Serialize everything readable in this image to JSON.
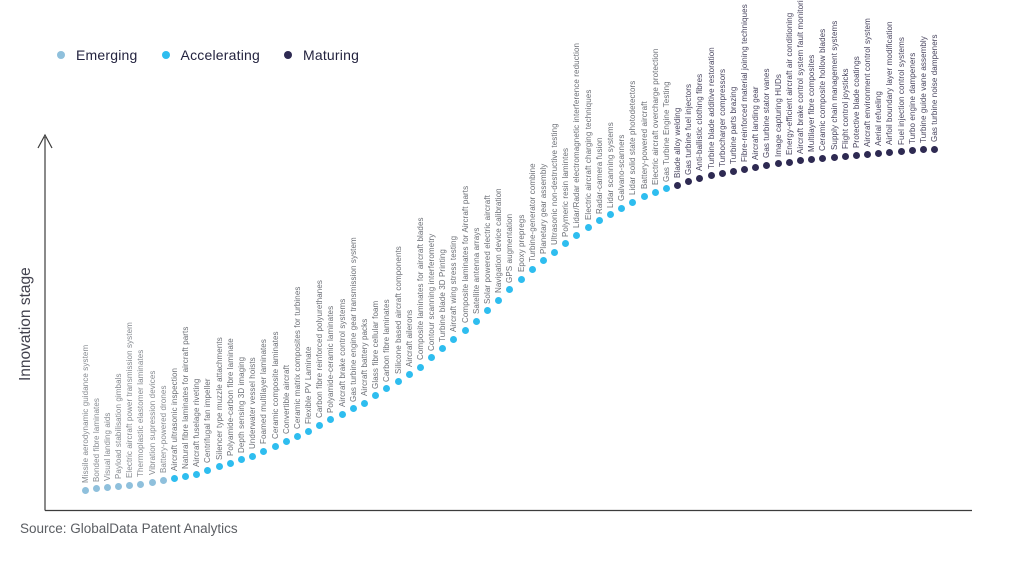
{
  "source": "Source: GlobalData Patent Analytics",
  "colors": {
    "emerging": "#8FC0DC",
    "accelerating": "#2EBDEF",
    "maturing": "#2E2A52",
    "axis": "#3c3c3c",
    "legend_text": "#23233f"
  },
  "chart_data": {
    "type": "scatter",
    "title": "",
    "xlabel": "",
    "ylabel": "Innovation stage",
    "legend_position": "top-left",
    "grid": false,
    "stages": [
      "Emerging",
      "Accelerating",
      "Maturing"
    ],
    "stage_colors": {
      "Emerging": "#8FC0DC",
      "Accelerating": "#2EBDEF",
      "Maturing": "#2E2A52"
    },
    "label_colors": {
      "Emerging": "#878b91",
      "Accelerating": "#6d7077",
      "Maturing": "#4a4660"
    },
    "items": [
      {
        "label": "Missile aerodynamic guidance system",
        "stage": "Emerging"
      },
      {
        "label": "Bonded fibre laminates",
        "stage": "Emerging"
      },
      {
        "label": "Visual landing aids",
        "stage": "Emerging"
      },
      {
        "label": "Payload stabilisation gimbals",
        "stage": "Emerging"
      },
      {
        "label": "Electric aircraft power transmission system",
        "stage": "Emerging"
      },
      {
        "label": "Thermoplastic elastomer laminates",
        "stage": "Emerging"
      },
      {
        "label": "Vibration supression devices",
        "stage": "Emerging"
      },
      {
        "label": "Battery-powered drones",
        "stage": "Emerging"
      },
      {
        "label": "Aircraft ultrasonic inspection",
        "stage": "Accelerating"
      },
      {
        "label": "Natural fibre laminates for aircraft parts",
        "stage": "Accelerating"
      },
      {
        "label": "Aircraft fuselage riveting",
        "stage": "Accelerating"
      },
      {
        "label": "Centrifugal fan impeller",
        "stage": "Accelerating"
      },
      {
        "label": "Silencer type muzzle attachments",
        "stage": "Accelerating"
      },
      {
        "label": "Polyamide-carbon fibre laminate",
        "stage": "Accelerating"
      },
      {
        "label": "Depth sensing 3D imaging",
        "stage": "Accelerating"
      },
      {
        "label": "Underwater vessel hoists",
        "stage": "Accelerating"
      },
      {
        "label": "Foamed multilayer laminates",
        "stage": "Accelerating"
      },
      {
        "label": "Ceramic composite laminates",
        "stage": "Accelerating"
      },
      {
        "label": "Convertible aircraft",
        "stage": "Accelerating"
      },
      {
        "label": "Ceramic matrix composites for turbines",
        "stage": "Accelerating"
      },
      {
        "label": "Flexible PV Laminate",
        "stage": "Accelerating"
      },
      {
        "label": "Carbon fibre reinforced polyurethanes",
        "stage": "Accelerating"
      },
      {
        "label": "Polyamide-ceramic laminates",
        "stage": "Accelerating"
      },
      {
        "label": "Aircraft brake control systems",
        "stage": "Accelerating"
      },
      {
        "label": "Gas turbine engine gear transmission system",
        "stage": "Accelerating"
      },
      {
        "label": "Aircraft battery packs",
        "stage": "Accelerating"
      },
      {
        "label": "Glass fibre cellular foam",
        "stage": "Accelerating"
      },
      {
        "label": "Carbon fibre laminates",
        "stage": "Accelerating"
      },
      {
        "label": "Silicone based aircraft components",
        "stage": "Accelerating"
      },
      {
        "label": "Aircraft ailerons",
        "stage": "Accelerating"
      },
      {
        "label": "Composite laminates for aircraft blades",
        "stage": "Accelerating"
      },
      {
        "label": "Contour scanning interferometry",
        "stage": "Accelerating"
      },
      {
        "label": "Turbine blade 3D Printing",
        "stage": "Accelerating"
      },
      {
        "label": "Aircraft wing stress testing",
        "stage": "Accelerating"
      },
      {
        "label": "Composite laminates for Aircraft parts",
        "stage": "Accelerating"
      },
      {
        "label": "Satellite antenna arrays",
        "stage": "Accelerating"
      },
      {
        "label": "Solar powered electric aircraft",
        "stage": "Accelerating"
      },
      {
        "label": "Navigation device calibration",
        "stage": "Accelerating"
      },
      {
        "label": "GPS augmentation",
        "stage": "Accelerating"
      },
      {
        "label": "Epoxy prepregs",
        "stage": "Accelerating"
      },
      {
        "label": "Turbine-generator combine",
        "stage": "Accelerating"
      },
      {
        "label": "Planetary gear assembly",
        "stage": "Accelerating"
      },
      {
        "label": "Ultrasonic non-destructive testing",
        "stage": "Accelerating"
      },
      {
        "label": "Polymeric resin lamintes",
        "stage": "Accelerating"
      },
      {
        "label": "Lidar/Radar electromagnetic interference reduction",
        "stage": "Accelerating"
      },
      {
        "label": "Electric aircraft charging techniques",
        "stage": "Accelerating"
      },
      {
        "label": "Radar-camera fusion",
        "stage": "Accelerating"
      },
      {
        "label": "Lidar scanning systems",
        "stage": "Accelerating"
      },
      {
        "label": "Galvano-scanners",
        "stage": "Accelerating"
      },
      {
        "label": "Lidar solid state photodetectors",
        "stage": "Accelerating"
      },
      {
        "label": "Battery-powered aircraft",
        "stage": "Accelerating"
      },
      {
        "label": "Electric aircraft overcharge protection",
        "stage": "Accelerating"
      },
      {
        "label": "Gas Turbine Engine Testing",
        "stage": "Accelerating"
      },
      {
        "label": "Blade alloy welding",
        "stage": "Maturing"
      },
      {
        "label": "Gas turbine fuel injectors",
        "stage": "Maturing"
      },
      {
        "label": "Anti-ballistic clothing fibres",
        "stage": "Maturing"
      },
      {
        "label": "Turbine blade additive restoration",
        "stage": "Maturing"
      },
      {
        "label": "Turbocharger compressors",
        "stage": "Maturing"
      },
      {
        "label": "Turbine parts brazing",
        "stage": "Maturing"
      },
      {
        "label": "Fibre-reinforced material joining techniques",
        "stage": "Maturing"
      },
      {
        "label": "Aircraft landing gear",
        "stage": "Maturing"
      },
      {
        "label": "Gas turbine stator vanes",
        "stage": "Maturing"
      },
      {
        "label": "Image capturing HUDs",
        "stage": "Maturing"
      },
      {
        "label": "Energy-efficient aircraft air conditioning",
        "stage": "Maturing"
      },
      {
        "label": "Aircraft brake control system fault monitoring",
        "stage": "Maturing"
      },
      {
        "label": "Multilayer fibre composites",
        "stage": "Maturing"
      },
      {
        "label": "Ceramic composite hollow blades",
        "stage": "Maturing"
      },
      {
        "label": "Supply chain management systems",
        "stage": "Maturing"
      },
      {
        "label": "Flight control joysticks",
        "stage": "Maturing"
      },
      {
        "label": "Protective blade coatings",
        "stage": "Maturing"
      },
      {
        "label": "Aircraft environment control system",
        "stage": "Maturing"
      },
      {
        "label": "Aerial refueling",
        "stage": "Maturing"
      },
      {
        "label": "Airfoil boundary layer modification",
        "stage": "Maturing"
      },
      {
        "label": "Fuel injection control systems",
        "stage": "Maturing"
      },
      {
        "label": "Turbo engine dampeners",
        "stage": "Maturing"
      },
      {
        "label": "Turbine guide vane assembly",
        "stage": "Maturing"
      },
      {
        "label": "Gas turbine noise dampeners",
        "stage": "Maturing"
      }
    ]
  }
}
